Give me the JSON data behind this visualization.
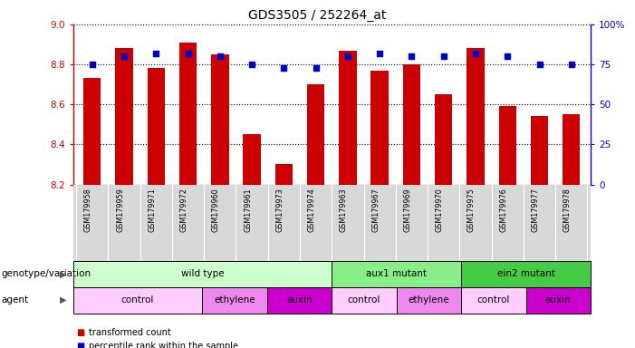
{
  "title": "GDS3505 / 252264_at",
  "samples": [
    "GSM179958",
    "GSM179959",
    "GSM179971",
    "GSM179972",
    "GSM179960",
    "GSM179961",
    "GSM179973",
    "GSM179974",
    "GSM179963",
    "GSM179967",
    "GSM179969",
    "GSM179970",
    "GSM179975",
    "GSM179976",
    "GSM179977",
    "GSM179978"
  ],
  "bar_values": [
    8.73,
    8.88,
    8.78,
    8.91,
    8.85,
    8.45,
    8.3,
    8.7,
    8.87,
    8.77,
    8.8,
    8.65,
    8.88,
    8.59,
    8.54,
    8.55
  ],
  "percentile_values": [
    75,
    80,
    82,
    82,
    80,
    75,
    73,
    73,
    80,
    82,
    80,
    80,
    82,
    80,
    75,
    75
  ],
  "ylim": [
    8.2,
    9.0
  ],
  "y2lim": [
    0,
    100
  ],
  "y2ticks": [
    0,
    25,
    50,
    75,
    100
  ],
  "y2ticklabels": [
    "0",
    "25",
    "50",
    "75",
    "100%"
  ],
  "yticks": [
    8.2,
    8.4,
    8.6,
    8.8,
    9.0
  ],
  "bar_color": "#cc0000",
  "dot_color": "#0000cc",
  "left_axis_color": "#cc0000",
  "right_axis_color": "#0000cc",
  "genotype_row": [
    {
      "label": "wild type",
      "start": 0,
      "end": 8,
      "color": "#ccffcc"
    },
    {
      "label": "aux1 mutant",
      "start": 8,
      "end": 12,
      "color": "#88ee88"
    },
    {
      "label": "ein2 mutant",
      "start": 12,
      "end": 16,
      "color": "#44cc44"
    }
  ],
  "agent_row": [
    {
      "label": "control",
      "start": 0,
      "end": 4,
      "color": "#ffccff"
    },
    {
      "label": "ethylene",
      "start": 4,
      "end": 6,
      "color": "#ee88ee"
    },
    {
      "label": "auxin",
      "start": 6,
      "end": 8,
      "color": "#cc00cc"
    },
    {
      "label": "control",
      "start": 8,
      "end": 10,
      "color": "#ffccff"
    },
    {
      "label": "ethylene",
      "start": 10,
      "end": 12,
      "color": "#ee88ee"
    },
    {
      "label": "control",
      "start": 12,
      "end": 14,
      "color": "#ffccff"
    },
    {
      "label": "auxin",
      "start": 14,
      "end": 16,
      "color": "#cc00cc"
    }
  ],
  "legend_bar_label": "transformed count",
  "legend_dot_label": "percentile rank within the sample",
  "xlabel_row1": "genotype/variation",
  "xlabel_row2": "agent"
}
